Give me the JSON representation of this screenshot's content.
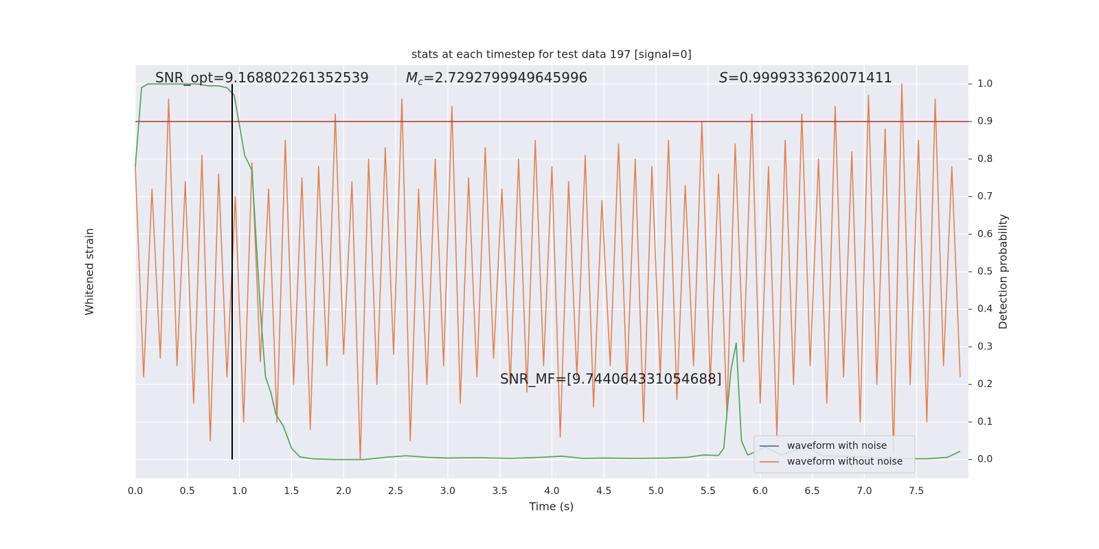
{
  "chart_data": {
    "type": "line",
    "title": "stats at each timestep for test data 197 [signal=0]",
    "xlabel": "Time (s)",
    "ylabel": "Whitened strain",
    "y2label": "Detection probability",
    "xlim": [
      0,
      8
    ],
    "xticks": [
      {
        "value": 0,
        "label": "0.0"
      },
      0.5,
      {
        "value": 1,
        "label": "1.0"
      },
      1.5,
      {
        "value": 2,
        "label": "2.0"
      },
      2.5,
      {
        "value": 3,
        "label": "3.0"
      },
      3.5,
      {
        "value": 4,
        "label": "4.0"
      },
      4.5,
      {
        "value": 5,
        "label": "5.0"
      },
      5.5,
      {
        "value": 6,
        "label": "6.0"
      },
      6.5,
      {
        "value": 7,
        "label": "7.0"
      },
      7.5
    ],
    "y2lim": [
      -0.05,
      1.05
    ],
    "y2ticks": [
      {
        "value": 0,
        "label": "0.0"
      },
      0.1,
      0.2,
      0.3,
      0.4,
      0.5,
      0.6,
      0.7,
      0.8,
      0.9,
      {
        "value": 1,
        "label": "1.0"
      }
    ],
    "grid": true,
    "legend": "lower right",
    "series": [
      {
        "name": "waveform with noise",
        "color": "#4c72b0"
      },
      {
        "name": "waveform without noise",
        "color": "#dd8452",
        "axis": "y2",
        "x": [
          0,
          0.08,
          0.16,
          0.24,
          0.32,
          0.4,
          0.48,
          0.56,
          0.64,
          0.72,
          0.8,
          0.88,
          0.96,
          1.04,
          1.12,
          1.2,
          1.28,
          1.36,
          1.44,
          1.52,
          1.6,
          1.68,
          1.76,
          1.84,
          1.92,
          2,
          2.08,
          2.16,
          2.24,
          2.32,
          2.4,
          2.48,
          2.56,
          2.64,
          2.72,
          2.8,
          2.88,
          2.96,
          3.04,
          3.12,
          3.2,
          3.28,
          3.36,
          3.44,
          3.52,
          3.6,
          3.68,
          3.76,
          3.84,
          3.92,
          4,
          4.08,
          4.16,
          4.24,
          4.32,
          4.4,
          4.48,
          4.56,
          4.64,
          4.72,
          4.8,
          4.88,
          4.96,
          5.04,
          5.12,
          5.2,
          5.28,
          5.36,
          5.44,
          5.52,
          5.6,
          5.68,
          5.76,
          5.84,
          5.92,
          6,
          6.08,
          6.16,
          6.24,
          6.32,
          6.4,
          6.48,
          6.56,
          6.64,
          6.72,
          6.8,
          6.88,
          6.96,
          7.04,
          7.12,
          7.2,
          7.28,
          7.36,
          7.44,
          7.52,
          7.6,
          7.68,
          7.76,
          7.84,
          7.92
        ],
        "values": [
          0.78,
          0.22,
          0.72,
          0.27,
          0.96,
          0.25,
          0.74,
          0.15,
          0.81,
          0.05,
          0.76,
          0.22,
          0.7,
          0.1,
          0.79,
          0.26,
          0.72,
          0.1,
          0.85,
          0.2,
          0.75,
          0.08,
          0.78,
          0.25,
          0.92,
          0.28,
          0.74,
          0.0,
          0.8,
          0.2,
          0.83,
          0.28,
          0.96,
          0.05,
          0.72,
          0.2,
          0.8,
          0.25,
          0.94,
          0.15,
          0.75,
          0.22,
          0.83,
          0.27,
          0.72,
          0.2,
          0.8,
          0.18,
          0.85,
          0.25,
          0.78,
          0.06,
          0.74,
          0.22,
          0.81,
          0.14,
          0.69,
          0.25,
          0.84,
          0.2,
          0.8,
          0.1,
          0.78,
          0.22,
          0.85,
          0.16,
          0.73,
          0.25,
          0.9,
          0.2,
          0.76,
          0.12,
          0.84,
          0.26,
          0.92,
          0.15,
          0.78,
          0.06,
          0.85,
          0.2,
          0.92,
          0.25,
          0.8,
          0.15,
          0.94,
          0.22,
          0.82,
          0.1,
          0.97,
          0.2,
          0.88,
          0.02,
          1.0,
          0.2,
          0.85,
          0.1,
          0.96,
          0.25,
          0.78,
          0.22
        ]
      },
      {
        "color": "#55a868",
        "axis": "y2",
        "x": [
          0,
          0.06,
          0.12,
          0.2,
          0.3,
          0.4,
          0.5,
          0.6,
          0.7,
          0.8,
          0.88,
          0.95,
          1.05,
          1.12,
          1.2,
          1.25,
          1.3,
          1.35,
          1.42,
          1.5,
          1.58,
          1.7,
          1.9,
          2.2,
          2.4,
          2.6,
          2.8,
          3.0,
          3.3,
          3.6,
          3.9,
          4.1,
          4.3,
          4.5,
          4.8,
          5.1,
          5.3,
          5.45,
          5.6,
          5.65,
          5.72,
          5.77,
          5.82,
          5.88,
          5.95,
          6.05,
          6.2,
          6.45,
          6.6,
          6.9,
          7.2,
          7.6,
          7.8,
          7.92
        ],
        "values": [
          0.78,
          0.99,
          1.0,
          1.0,
          1.0,
          1.0,
          1.0,
          1.0,
          0.995,
          0.995,
          0.99,
          0.97,
          0.81,
          0.77,
          0.4,
          0.22,
          0.18,
          0.12,
          0.09,
          0.03,
          0.007,
          0.002,
          0,
          0,
          0.006,
          0.01,
          0.006,
          0.004,
          0.005,
          0.003,
          0.006,
          0.009,
          0.003,
          0.004,
          0.003,
          0.004,
          0.006,
          0.012,
          0.011,
          0.03,
          0.24,
          0.31,
          0.05,
          0.012,
          0.02,
          0.033,
          0.012,
          0.035,
          0.01,
          0.008,
          0.003,
          0.002,
          0.006,
          0.022
        ]
      }
    ],
    "hlines": [
      {
        "value": 0.9,
        "color": "#b5302e"
      }
    ],
    "vlines": [
      {
        "value": 0.93,
        "ymin": 0,
        "ymax": 1,
        "color": "#000000"
      }
    ],
    "annotations": [
      {
        "text": "SNR_opt=9.168802261352539"
      },
      {
        "symbol": "M",
        "subscript": "c",
        "text": "=2.7292799949645996"
      },
      {
        "symbol": "S",
        "text": "=0.9999333620071411"
      },
      {
        "text": "SNR_MF=[9.744064331054688]"
      }
    ]
  }
}
